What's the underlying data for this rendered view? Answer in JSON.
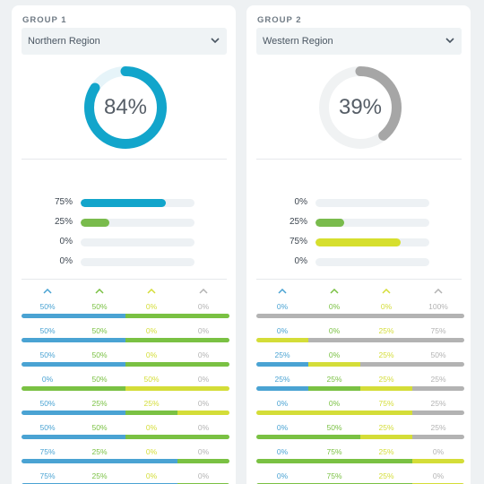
{
  "colors": {
    "blue": "#4aa3d3",
    "green": "#7ac143",
    "yellow": "#d4dd38",
    "gray": "#b3b3b3",
    "donut_teal": "#12a5cb",
    "donut_track_teal": "#e6f4f9",
    "donut_gray": "#a6a6a6",
    "donut_track_gray": "#f0f2f3",
    "hbar_blue": "#12a5cb",
    "hbar_green": "#79bb4c",
    "hbar_yellow": "#d6df2e"
  },
  "groups": [
    {
      "label": "GROUP 1",
      "region": "Northern Region",
      "donut": {
        "value": 84,
        "text": "84%",
        "color": "donut_teal",
        "track": "donut_track_teal"
      },
      "bars": [
        {
          "label": "75%",
          "value": 75,
          "color": "hbar_blue"
        },
        {
          "label": "25%",
          "value": 25,
          "color": "hbar_green"
        },
        {
          "label": "0%",
          "value": 0,
          "color": "hbar_blue"
        },
        {
          "label": "0%",
          "value": 0,
          "color": "hbar_blue"
        }
      ],
      "columns": [
        {
          "icon": "chevron-up-icon",
          "color": "blue"
        },
        {
          "icon": "chevron-up-icon",
          "color": "green"
        },
        {
          "icon": "chevron-up-icon",
          "color": "yellow"
        },
        {
          "icon": "chevron-up-icon",
          "color": "gray"
        }
      ],
      "rows": [
        {
          "values": [
            "50%",
            "50%",
            "0%",
            "0%"
          ],
          "fractions": [
            50,
            50,
            0,
            0
          ]
        },
        {
          "values": [
            "50%",
            "50%",
            "0%",
            "0%"
          ],
          "fractions": [
            50,
            50,
            0,
            0
          ]
        },
        {
          "values": [
            "50%",
            "50%",
            "0%",
            "0%"
          ],
          "fractions": [
            50,
            50,
            0,
            0
          ]
        },
        {
          "values": [
            "0%",
            "50%",
            "50%",
            "0%"
          ],
          "fractions": [
            0,
            50,
            50,
            0
          ]
        },
        {
          "values": [
            "50%",
            "25%",
            "25%",
            "0%"
          ],
          "fractions": [
            50,
            25,
            25,
            0
          ]
        },
        {
          "values": [
            "50%",
            "50%",
            "0%",
            "0%"
          ],
          "fractions": [
            50,
            50,
            0,
            0
          ]
        },
        {
          "values": [
            "75%",
            "25%",
            "0%",
            "0%"
          ],
          "fractions": [
            75,
            25,
            0,
            0
          ]
        },
        {
          "values": [
            "75%",
            "25%",
            "0%",
            "0%"
          ],
          "fractions": [
            75,
            25,
            0,
            0
          ]
        }
      ]
    },
    {
      "label": "GROUP 2",
      "region": "Western Region",
      "donut": {
        "value": 39,
        "text": "39%",
        "color": "donut_gray",
        "track": "donut_track_gray"
      },
      "bars": [
        {
          "label": "0%",
          "value": 0,
          "color": "hbar_blue"
        },
        {
          "label": "25%",
          "value": 25,
          "color": "hbar_green"
        },
        {
          "label": "75%",
          "value": 75,
          "color": "hbar_yellow"
        },
        {
          "label": "0%",
          "value": 0,
          "color": "hbar_blue"
        }
      ],
      "columns": [
        {
          "icon": "chevron-up-icon",
          "color": "blue"
        },
        {
          "icon": "chevron-up-icon",
          "color": "green"
        },
        {
          "icon": "chevron-up-icon",
          "color": "yellow"
        },
        {
          "icon": "chevron-up-icon",
          "color": "gray"
        }
      ],
      "rows": [
        {
          "values": [
            "0%",
            "0%",
            "0%",
            "100%"
          ],
          "fractions": [
            0,
            0,
            0,
            100
          ]
        },
        {
          "values": [
            "0%",
            "0%",
            "25%",
            "75%"
          ],
          "fractions": [
            0,
            0,
            25,
            75
          ]
        },
        {
          "values": [
            "25%",
            "0%",
            "25%",
            "50%"
          ],
          "fractions": [
            25,
            0,
            25,
            50
          ]
        },
        {
          "values": [
            "25%",
            "25%",
            "25%",
            "25%"
          ],
          "fractions": [
            25,
            25,
            25,
            25
          ]
        },
        {
          "values": [
            "0%",
            "0%",
            "75%",
            "25%"
          ],
          "fractions": [
            0,
            0,
            75,
            25
          ]
        },
        {
          "values": [
            "0%",
            "50%",
            "25%",
            "25%"
          ],
          "fractions": [
            0,
            50,
            25,
            25
          ]
        },
        {
          "values": [
            "0%",
            "75%",
            "25%",
            "0%"
          ],
          "fractions": [
            0,
            75,
            25,
            0
          ]
        },
        {
          "values": [
            "0%",
            "75%",
            "25%",
            "0%"
          ],
          "fractions": [
            0,
            75,
            25,
            0
          ]
        }
      ]
    }
  ]
}
